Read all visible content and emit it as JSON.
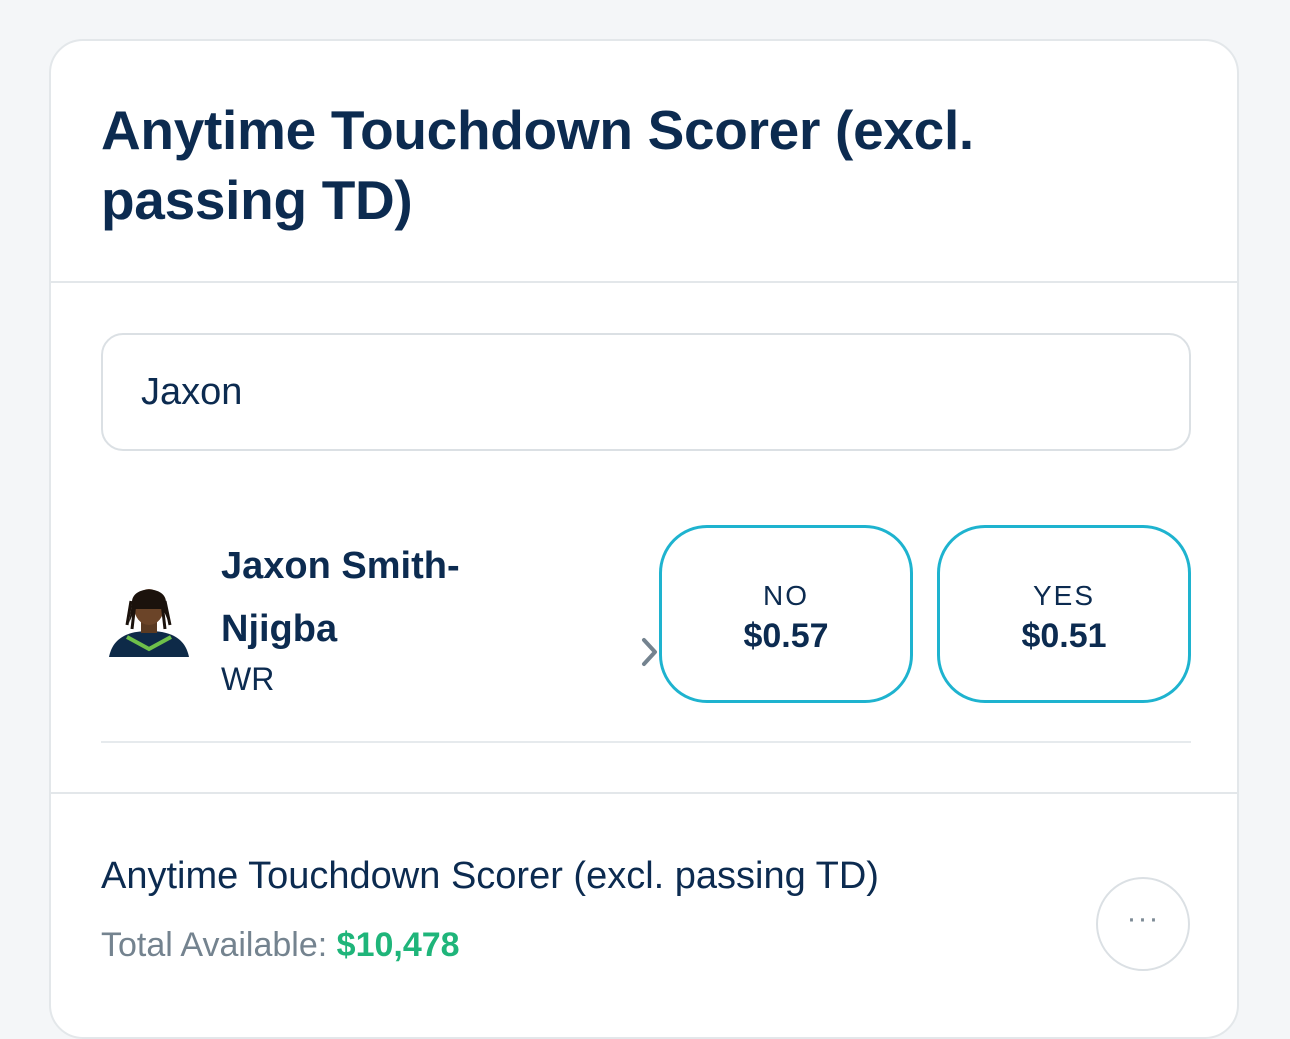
{
  "market": {
    "title": "Anytime Touchdown Scorer (excl. passing TD)"
  },
  "search": {
    "value": "Jaxon"
  },
  "player": {
    "name": "Jaxon Smith-Njigba",
    "position": "WR",
    "avatar_icon": "player-headshot-icon",
    "options": [
      {
        "label": "NO",
        "price": "$0.57"
      },
      {
        "label": "YES",
        "price": "$0.51"
      }
    ]
  },
  "footer": {
    "market_name": "Anytime Touchdown Scorer (excl. passing TD)",
    "available_label": "Total Available:",
    "available_value": "$10,478",
    "more_label": "···"
  },
  "colors": {
    "text_primary": "#0c2b50",
    "accent_border": "#1eb3cf",
    "available_green": "#1fb57a",
    "muted": "#74838f"
  }
}
